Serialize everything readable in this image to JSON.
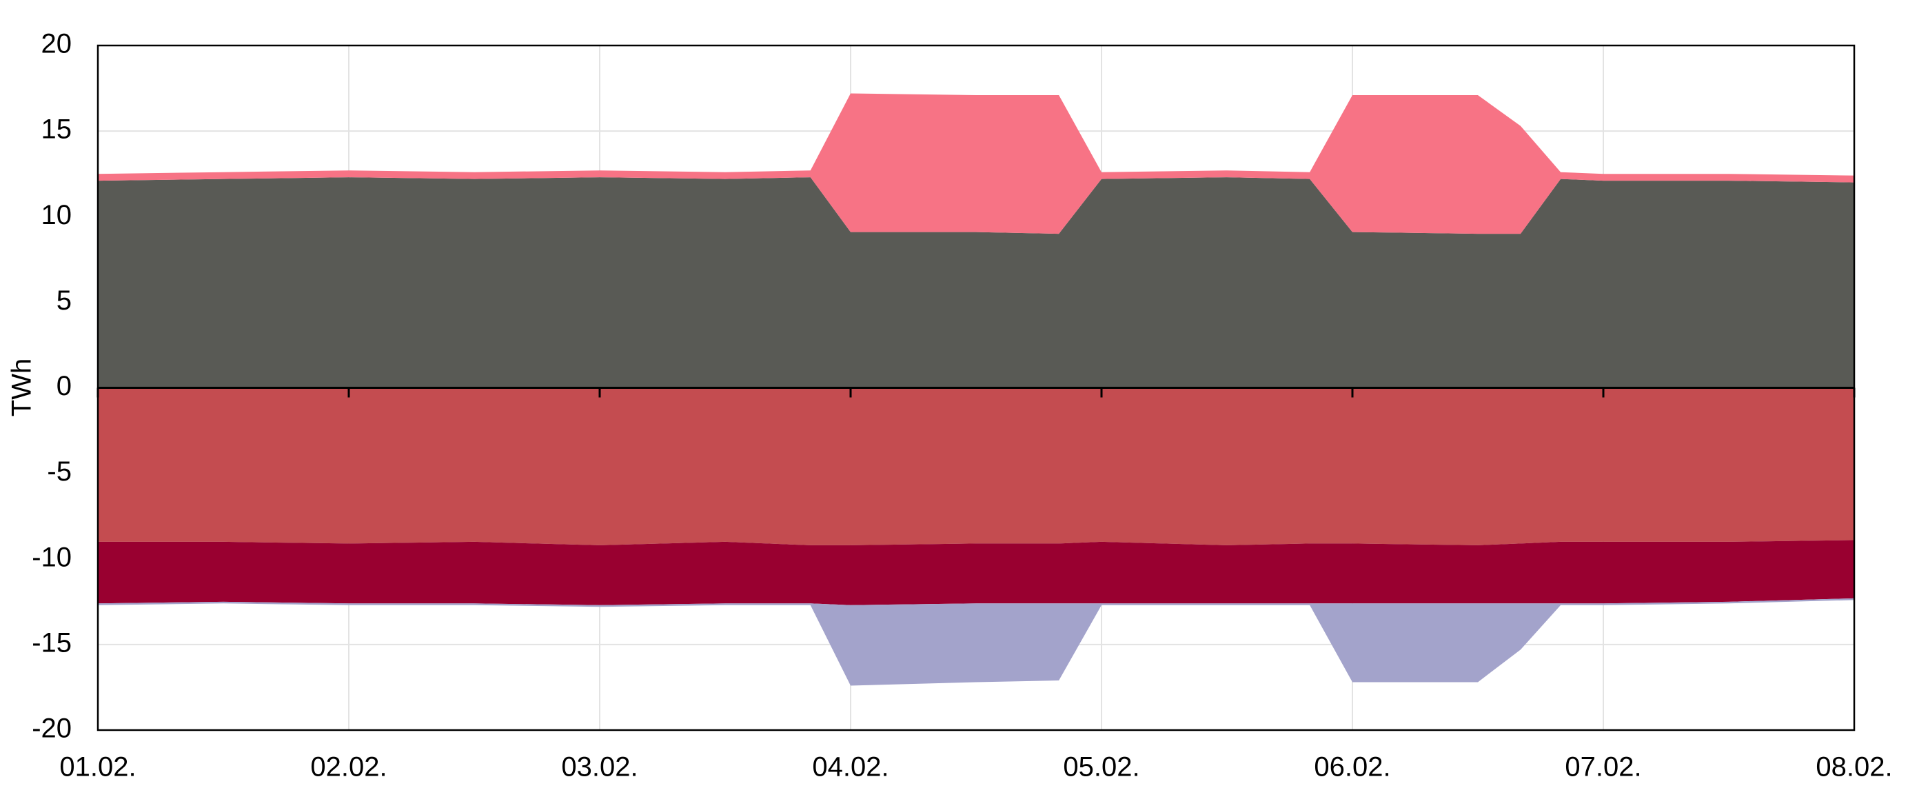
{
  "chart_data": {
    "type": "area",
    "y_label": "TWh",
    "x": [
      0,
      0.5,
      1,
      1.5,
      2,
      2.5,
      2.84,
      3.0,
      3.5,
      3.83,
      4.0,
      4.5,
      4.83,
      5.0,
      5.5,
      5.67,
      5.83,
      6.0,
      6.5,
      7.0
    ],
    "xlim": [
      0,
      7
    ],
    "xticks": [
      {
        "value": 0,
        "label": "01.02."
      },
      {
        "value": 1,
        "label": "02.02."
      },
      {
        "value": 2,
        "label": "03.02."
      },
      {
        "value": 3,
        "label": "04.02."
      },
      {
        "value": 4,
        "label": "05.02."
      },
      {
        "value": 5,
        "label": "06.02."
      },
      {
        "value": 6,
        "label": "07.02."
      },
      {
        "value": 7,
        "label": "08.02."
      }
    ],
    "ylim": [
      -20,
      20
    ],
    "yticks": [
      -20,
      -15,
      -10,
      -5,
      0,
      5,
      10,
      15,
      20
    ],
    "grid": true,
    "series": [
      {
        "color": "#595a55",
        "values": [
          12.1,
          12.2,
          12.3,
          12.2,
          12.3,
          12.2,
          12.3,
          9.1,
          9.1,
          9.0,
          12.2,
          12.3,
          12.2,
          9.1,
          9.0,
          9.0,
          12.2,
          12.1,
          12.1,
          12.0
        ]
      },
      {
        "color": "#f77385",
        "values": [
          0.4,
          0.4,
          0.4,
          0.4,
          0.4,
          0.4,
          0.4,
          8.1,
          8.0,
          8.1,
          0.4,
          0.4,
          0.4,
          8.0,
          8.1,
          6.3,
          0.4,
          0.4,
          0.4,
          0.4
        ]
      },
      {
        "color": "#c44c50",
        "values": [
          -9.0,
          -9.0,
          -9.1,
          -9.0,
          -9.2,
          -9.0,
          -9.2,
          -9.2,
          -9.1,
          -9.1,
          -9.0,
          -9.2,
          -9.1,
          -9.1,
          -9.2,
          -9.1,
          -9.0,
          -9.0,
          -9.0,
          -8.9
        ]
      },
      {
        "color": "#990030",
        "values": [
          -3.6,
          -3.5,
          -3.5,
          -3.6,
          -3.5,
          -3.6,
          -3.4,
          -3.5,
          -3.5,
          -3.5,
          -3.6,
          -3.4,
          -3.5,
          -3.5,
          -3.4,
          -3.5,
          -3.6,
          -3.6,
          -3.5,
          -3.4
        ]
      },
      {
        "color": "#a3a3cb",
        "values": [
          -0.1,
          -0.1,
          -0.1,
          -0.1,
          -0.1,
          -0.1,
          -0.1,
          -4.7,
          -4.6,
          -4.5,
          -0.1,
          -0.1,
          -0.1,
          -4.6,
          -4.6,
          -2.7,
          -0.1,
          -0.1,
          -0.1,
          -0.1
        ]
      }
    ]
  }
}
